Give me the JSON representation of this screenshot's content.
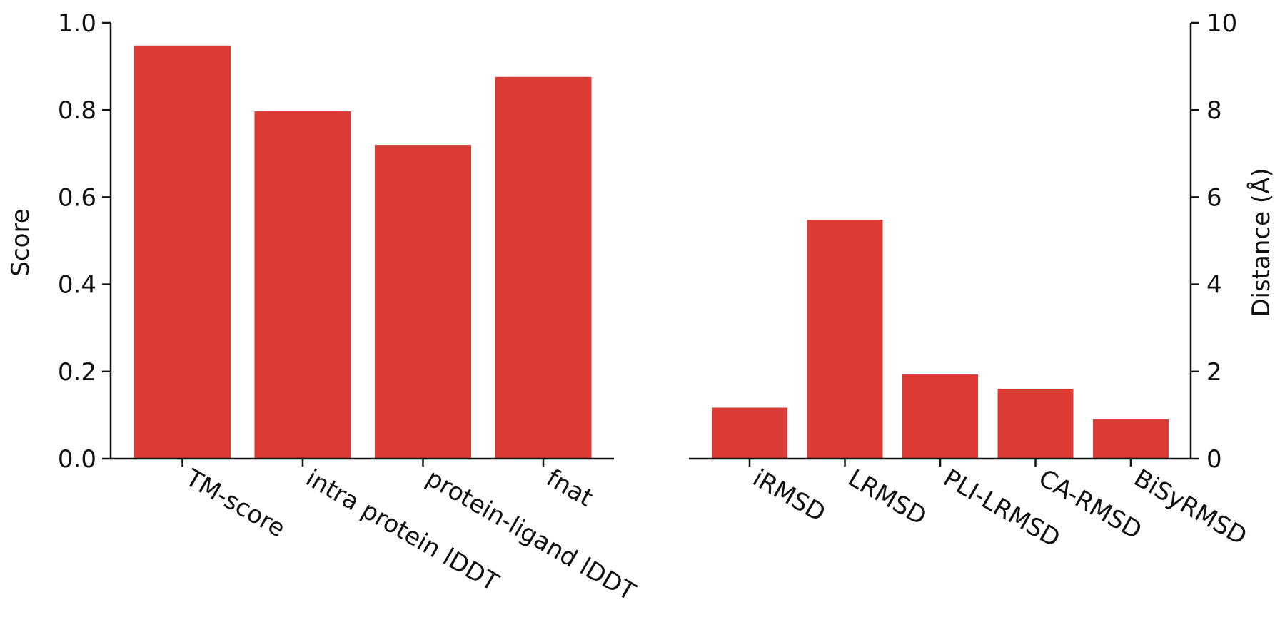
{
  "chart_data": [
    {
      "type": "bar",
      "categories": [
        "TM-score",
        "intra protein lDDT",
        "protein-ligand lDDT",
        "fnat"
      ],
      "values": [
        0.948,
        0.797,
        0.72,
        0.876
      ],
      "ylabel": "Score",
      "ylim": [
        0,
        1.0
      ],
      "yticks": [
        "0.0",
        "0.2",
        "0.4",
        "0.6",
        "0.8",
        "1.0"
      ],
      "y_axis_side": "left",
      "grid": false,
      "bar_color": "#dc3a35"
    },
    {
      "type": "bar",
      "categories": [
        "iRMSD",
        "LRMSD",
        "PLI-LRMSD",
        "CA-RMSD",
        "BiSyRMSD"
      ],
      "values": [
        1.17,
        5.48,
        1.93,
        1.6,
        0.9
      ],
      "ylabel": "Distance (Å)",
      "ylim": [
        0,
        10
      ],
      "yticks": [
        "0",
        "2",
        "4",
        "6",
        "8",
        "10"
      ],
      "y_axis_side": "right",
      "grid": false,
      "bar_color": "#dc3a35"
    }
  ]
}
